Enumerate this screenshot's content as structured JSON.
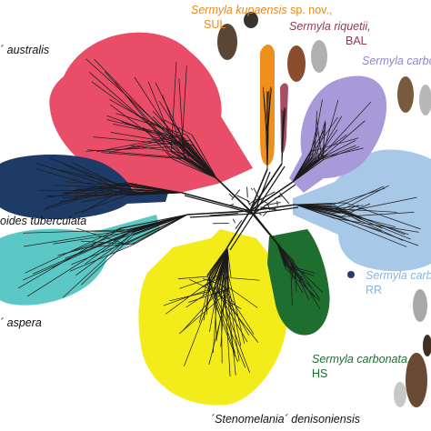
{
  "colors": {
    "australis": "#ea4d68",
    "tuberculata": "#1e3a66",
    "aspera": "#5cc8c6",
    "denisoniensis": "#f4ec1a",
    "kupaensis": "#f0901c",
    "riquetii": "#a84e64",
    "carbonata_a": "#a89ad8",
    "carbonata_rr": "#a8c8e8",
    "carbonata_hs": "#1e6e30",
    "network": "#1a1a1a"
  },
  "labels": {
    "kupaensis_name": "Sermyla kupaensis",
    "kupaensis_suffix": "sp. nov.,",
    "kupaensis_site": "SUL",
    "riquetii_name": "Sermyla riquetii,",
    "riquetii_site": "BAL",
    "carbonata_top": "Sermyla carbo",
    "australis": "´ australis",
    "tuberculata": "oides tuberculata",
    "aspera": "´ aspera",
    "carbonata_rr_name": "Sermyla carbo",
    "carbonata_rr_site": "RR",
    "carbonata_hs_name": "Sermyla carbonata,",
    "carbonata_hs_site": "HS",
    "denisoniensis": "´Stenomelania´ denisoniensis"
  },
  "shell_icons": [
    "kupaensis-shell-icon",
    "kupaensis-shell-icon-2",
    "riquetii-shell-icon",
    "riquetii-shell-icon-2",
    "carbonata-shell-icon",
    "carbonata-shell-icon-2",
    "carbonata-rr-shell-icon",
    "carbonata-hs-shell-icon",
    "carbonata-hs-shell-icon-2"
  ]
}
